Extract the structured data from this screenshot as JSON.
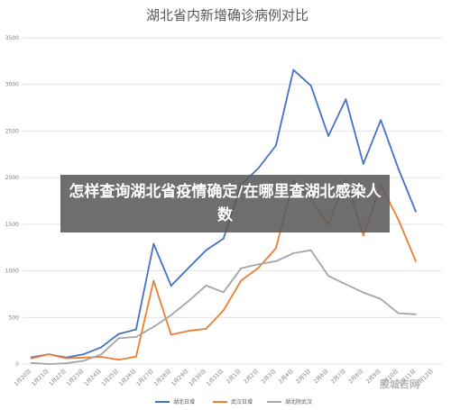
{
  "overlay": {
    "text": "怎样查询湖北省疫情确定/在哪里查湖北感染人数"
  },
  "watermark": {
    "text": "股城吉网"
  },
  "chart_data": {
    "type": "line",
    "title": "湖北省内新增确诊病例对比",
    "xlabel": "",
    "ylabel": "",
    "ylim": [
      0,
      3500
    ],
    "yticks": [
      0,
      500,
      1000,
      1500,
      2000,
      2500,
      3000,
      3500
    ],
    "grid": true,
    "legend": "bottom",
    "categories": [
      "1月20日",
      "1月21日",
      "1月22日",
      "1月23日",
      "1月24日",
      "1月25日",
      "1月26日",
      "1月27日",
      "1月28日",
      "1月29日",
      "1月30日",
      "1月31日",
      "2月1日",
      "2月2日",
      "2月3日",
      "2月4日",
      "2月5日",
      "2月6日",
      "2月7日",
      "2月8日",
      "2月9日",
      "2月10日",
      "2月11日",
      "2月12日"
    ],
    "series": [
      {
        "name": "湖北日增",
        "color": "#4472c4",
        "values": [
          72,
          105,
          70,
          105,
          180,
          323,
          371,
          1291,
          840,
          1032,
          1220,
          1347,
          1921,
          2103,
          2345,
          3156,
          2987,
          2447,
          2841,
          2147,
          2618,
          2097,
          1638,
          null
        ]
      },
      {
        "name": "武汉日增",
        "color": "#ed7d31",
        "values": [
          60,
          105,
          62,
          70,
          77,
          46,
          80,
          892,
          315,
          356,
          378,
          576,
          894,
          1033,
          1242,
          1967,
          1766,
          1501,
          1985,
          1379,
          1921,
          1552,
          1104,
          null
        ]
      },
      {
        "name": "湖北除武汉",
        "color": "#a5a5a5",
        "values": [
          12,
          0,
          8,
          35,
          103,
          277,
          291,
          399,
          525,
          676,
          842,
          771,
          1027,
          1070,
          1103,
          1189,
          1221,
          946,
          856,
          768,
          697,
          545,
          534,
          null
        ]
      }
    ]
  }
}
